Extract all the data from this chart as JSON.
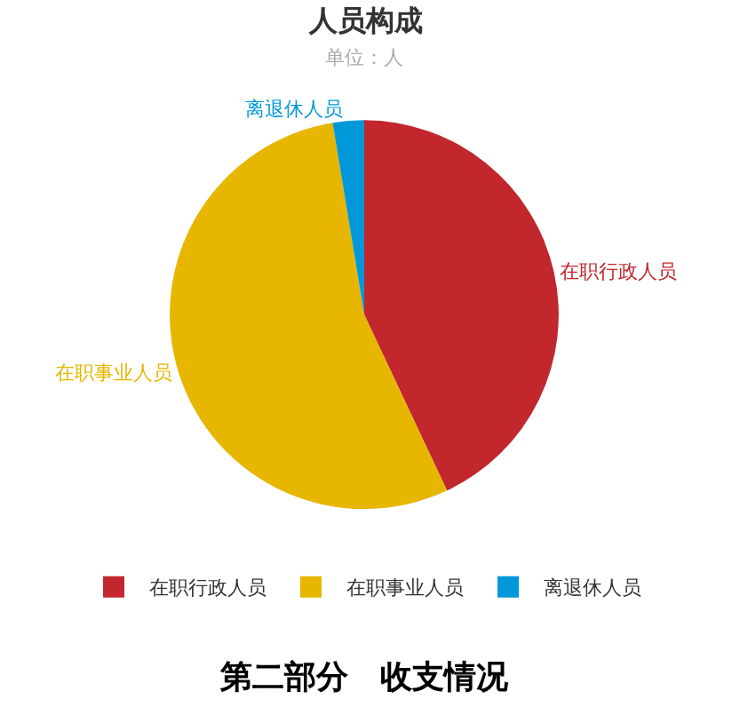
{
  "chart_data": {
    "type": "pie",
    "title": "人员构成",
    "subtitle": "单位：人",
    "categories": [
      "在职行政人员",
      "在职事业人员",
      "离退休人员"
    ],
    "values": [
      43,
      54.4,
      2.6
    ],
    "colors": [
      "#c1272d",
      "#e6b600",
      "#0098d9"
    ],
    "legend": "bottom",
    "annotations": [
      "第二部分　收支情况"
    ]
  }
}
